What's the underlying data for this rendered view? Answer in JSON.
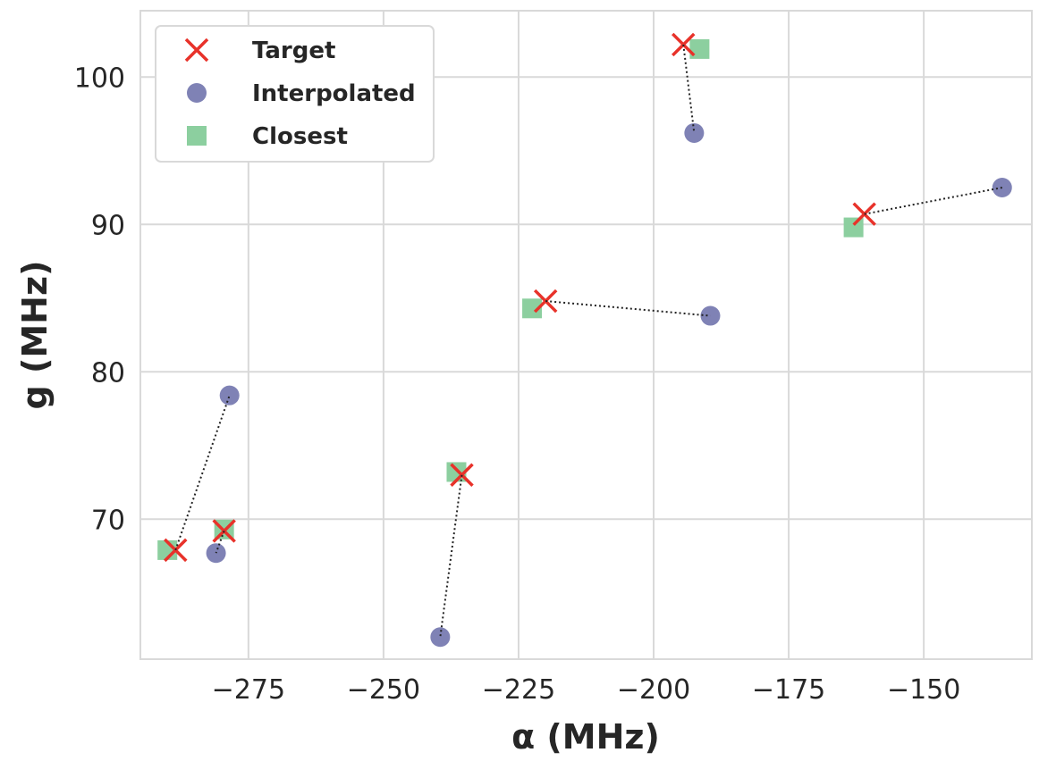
{
  "chart_data": {
    "type": "scatter",
    "xlabel": "α (MHz)",
    "ylabel": "g (MHz)",
    "xlim": [
      -295,
      -130
    ],
    "ylim": [
      60.5,
      104.5
    ],
    "xticks": [
      -275,
      -250,
      -225,
      -200,
      -175,
      -150
    ],
    "yticks": [
      70,
      80,
      90,
      100
    ],
    "xtick_labels": [
      "−275",
      "−250",
      "−225",
      "−200",
      "−175",
      "−150"
    ],
    "ytick_labels": [
      "70",
      "80",
      "90",
      "100"
    ],
    "grid": true,
    "legend_position": "top-left",
    "series": [
      {
        "name": "Target",
        "marker": "x",
        "color": "#e8322a",
        "points": [
          {
            "x": -288.5,
            "y": 67.9
          },
          {
            "x": -279.5,
            "y": 69.2
          },
          {
            "x": -235.5,
            "y": 73.0
          },
          {
            "x": -220.0,
            "y": 84.8
          },
          {
            "x": -194.5,
            "y": 102.2
          },
          {
            "x": -161.0,
            "y": 90.7
          }
        ]
      },
      {
        "name": "Interpolated",
        "marker": "circle",
        "color": "#7f82b5",
        "points": [
          {
            "x": -278.5,
            "y": 78.4
          },
          {
            "x": -281.0,
            "y": 67.7
          },
          {
            "x": -239.5,
            "y": 62.0
          },
          {
            "x": -189.5,
            "y": 83.8
          },
          {
            "x": -192.5,
            "y": 96.2
          },
          {
            "x": -135.5,
            "y": 92.5
          }
        ]
      },
      {
        "name": "Closest",
        "marker": "square",
        "color": "#8ccf9f",
        "points": [
          {
            "x": -290.0,
            "y": 67.9
          },
          {
            "x": -279.5,
            "y": 69.3
          },
          {
            "x": -236.5,
            "y": 73.2
          },
          {
            "x": -222.5,
            "y": 84.3
          },
          {
            "x": -191.5,
            "y": 101.9
          },
          {
            "x": -163.0,
            "y": 89.8
          }
        ]
      }
    ],
    "connectors": [
      {
        "from": {
          "x": -288.5,
          "y": 67.9
        },
        "to": {
          "x": -278.5,
          "y": 78.4
        }
      },
      {
        "from": {
          "x": -279.5,
          "y": 69.2
        },
        "to": {
          "x": -281.0,
          "y": 67.7
        }
      },
      {
        "from": {
          "x": -235.5,
          "y": 73.0
        },
        "to": {
          "x": -239.5,
          "y": 62.0
        }
      },
      {
        "from": {
          "x": -220.0,
          "y": 84.8
        },
        "to": {
          "x": -189.5,
          "y": 83.8
        }
      },
      {
        "from": {
          "x": -194.5,
          "y": 102.2
        },
        "to": {
          "x": -192.5,
          "y": 96.2
        }
      },
      {
        "from": {
          "x": -161.0,
          "y": 90.7
        },
        "to": {
          "x": -135.5,
          "y": 92.5
        }
      }
    ],
    "legend": [
      {
        "label": "Target",
        "marker": "x",
        "color": "#e8322a"
      },
      {
        "label": "Interpolated",
        "marker": "circle",
        "color": "#7f82b5"
      },
      {
        "label": "Closest",
        "marker": "square",
        "color": "#8ccf9f"
      }
    ]
  }
}
